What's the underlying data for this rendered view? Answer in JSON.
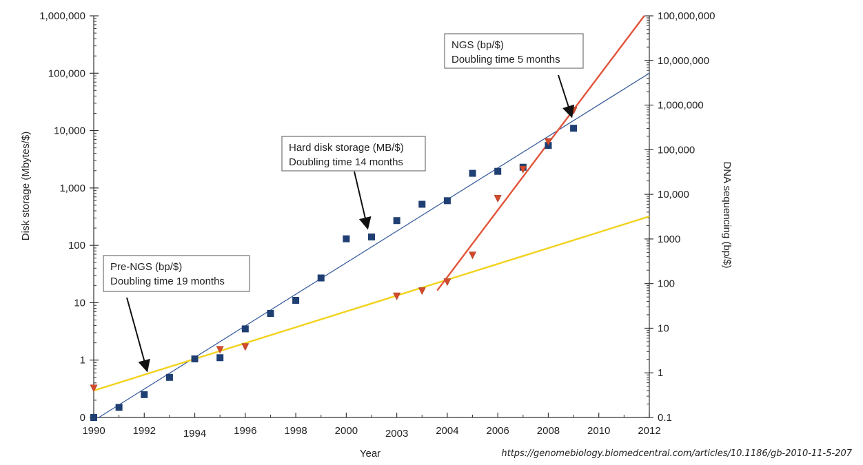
{
  "chart_data": {
    "type": "scatter",
    "xlabel": "Year",
    "ylabel_left": "Disk storage (Mbytes/$)",
    "ylabel_right": "DNA sequencing (bp/$)",
    "x_ticks": [
      "1990",
      "1992",
      "1994",
      "1996",
      "1998",
      "2000",
      "2003",
      "2004",
      "2006",
      "2008",
      "2010",
      "2012"
    ],
    "left_ticks": [
      {
        "label": "0",
        "decade": 0
      },
      {
        "label": "1",
        "decade": 1
      },
      {
        "label": "10",
        "decade": 2
      },
      {
        "label": "100",
        "decade": 3
      },
      {
        "label": "1,000",
        "decade": 4
      },
      {
        "label": "10,000",
        "decade": 5
      },
      {
        "label": "100,000",
        "decade": 6
      },
      {
        "label": "1,000,000",
        "decade": 7
      }
    ],
    "right_ticks": [
      {
        "label": "0.1",
        "value": 0.1
      },
      {
        "label": "1",
        "value": 1
      },
      {
        "label": "10",
        "value": 10
      },
      {
        "label": "100",
        "value": 100
      },
      {
        "label": "1000",
        "value": 1000
      },
      {
        "label": "10,000",
        "value": 10000
      },
      {
        "label": "100,000",
        "value": 100000
      },
      {
        "label": "1,000,000",
        "value": 1000000
      },
      {
        "label": "10,000,000",
        "value": 10000000
      },
      {
        "label": "100,000,000",
        "value": 100000000
      }
    ],
    "grid": false,
    "legend": "none",
    "series": [
      {
        "name": "Hard disk storage (MB/$)",
        "axis": "left",
        "marker": "square",
        "color": "#1f3f73",
        "points": [
          {
            "x": 1990,
            "y": 0.1
          },
          {
            "x": 1991,
            "y": 0.15
          },
          {
            "x": 1992,
            "y": 0.25
          },
          {
            "x": 1993,
            "y": 0.5
          },
          {
            "x": 1994,
            "y": 1.05
          },
          {
            "x": 1995,
            "y": 1.1
          },
          {
            "x": 1996,
            "y": 3.5
          },
          {
            "x": 1997,
            "y": 6.5
          },
          {
            "x": 1998,
            "y": 11
          },
          {
            "x": 1999,
            "y": 27
          },
          {
            "x": 2000,
            "y": 130
          },
          {
            "x": 2001,
            "y": 140
          },
          {
            "x": 2002,
            "y": 270
          },
          {
            "x": 2003,
            "y": 520
          },
          {
            "x": 2004,
            "y": 600
          },
          {
            "x": 2005,
            "y": 1800
          },
          {
            "x": 2006,
            "y": 1950
          },
          {
            "x": 2007,
            "y": 2300
          },
          {
            "x": 2008,
            "y": 5500
          },
          {
            "x": 2009,
            "y": 11000
          }
        ]
      },
      {
        "name": "DNA sequencing (bp/$)",
        "axis": "right",
        "marker": "triangle-down",
        "color": "#d44a2c",
        "points": [
          {
            "x": 1990,
            "y": 0.45
          },
          {
            "x": 1995,
            "y": 3.3
          },
          {
            "x": 1996,
            "y": 3.8
          },
          {
            "x": 2002,
            "y": 52
          },
          {
            "x": 2003,
            "y": 68
          },
          {
            "x": 2004,
            "y": 108
          },
          {
            "x": 2005,
            "y": 430
          },
          {
            "x": 2006,
            "y": 8000
          },
          {
            "x": 2007,
            "y": 36000
          },
          {
            "x": 2008,
            "y": 150000
          },
          {
            "x": 2009,
            "y": 750000
          }
        ]
      }
    ],
    "trend_lines": [
      {
        "name": "Hard disk storage",
        "axis": "left",
        "color": "#3a5fa0",
        "from": {
          "x": 1990.2,
          "y": 0.1
        },
        "to": {
          "x": 2012,
          "y": 100000
        }
      },
      {
        "name": "Pre-NGS",
        "axis": "right",
        "color": "#f2d21b",
        "from": {
          "x": 1990,
          "y": 0.4
        },
        "to": {
          "x": 2012,
          "y": 3200
        }
      },
      {
        "name": "NGS",
        "axis": "right",
        "color": "#e2543a",
        "from": {
          "x": 2003.6,
          "y": 70
        },
        "to": {
          "x": 2011.8,
          "y": 100000000
        }
      }
    ],
    "annotations": [
      {
        "line1": "NGS (bp/$)",
        "line2": "Doubling time 5 months"
      },
      {
        "line1": "Hard disk storage (MB/$)",
        "line2": "Doubling time 14 months"
      },
      {
        "line1": "Pre-NGS (bp/$)",
        "line2": "Doubling time 19 months"
      }
    ],
    "source": "https://genomebiology.biomedcentral.com/articles/10.1186/gb-2010-11-5-207"
  }
}
